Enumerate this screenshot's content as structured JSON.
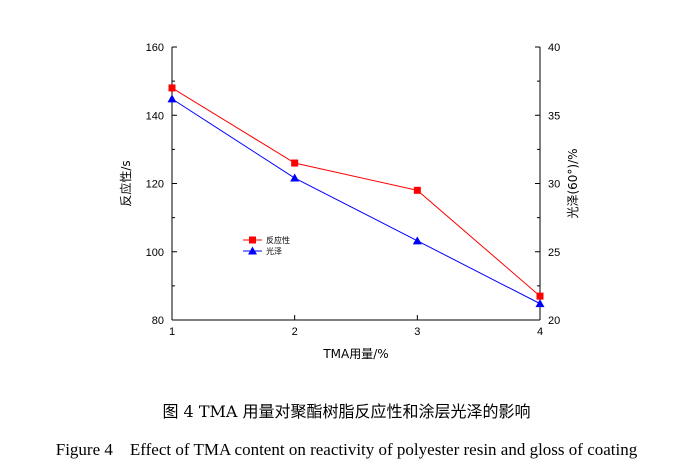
{
  "chart_data": {
    "type": "line",
    "x": [
      1,
      2,
      3,
      4
    ],
    "xlabel": "TMA用量/%",
    "ylabel_left": "反应性/s",
    "ylabel_right": "光泽(60°)/%",
    "xlim": [
      1,
      4
    ],
    "ylim_left": [
      80,
      160
    ],
    "ylim_right": [
      20,
      40
    ],
    "x_ticks": [
      "1",
      "2",
      "3",
      "4"
    ],
    "y_ticks_left": [
      "80",
      "100",
      "120",
      "140",
      "160"
    ],
    "y_ticks_right": [
      "20",
      "25",
      "30",
      "35",
      "40"
    ],
    "grid": false,
    "legend_position": "center-left",
    "series": [
      {
        "name": "反应性",
        "axis": "left",
        "values": [
          148,
          126,
          118,
          87
        ],
        "color": "#ff0000",
        "marker": "square"
      },
      {
        "name": "光泽",
        "axis": "right",
        "values": [
          36.2,
          30.4,
          25.8,
          21.2
        ],
        "color": "#0000ff",
        "marker": "triangle"
      }
    ]
  },
  "caption": {
    "chinese": "图 4 TMA 用量对聚酯树脂反应性和涂层光泽的影响",
    "english": "Figure 4    Effect of TMA content on reactivity of polyester resin and gloss of coating"
  }
}
